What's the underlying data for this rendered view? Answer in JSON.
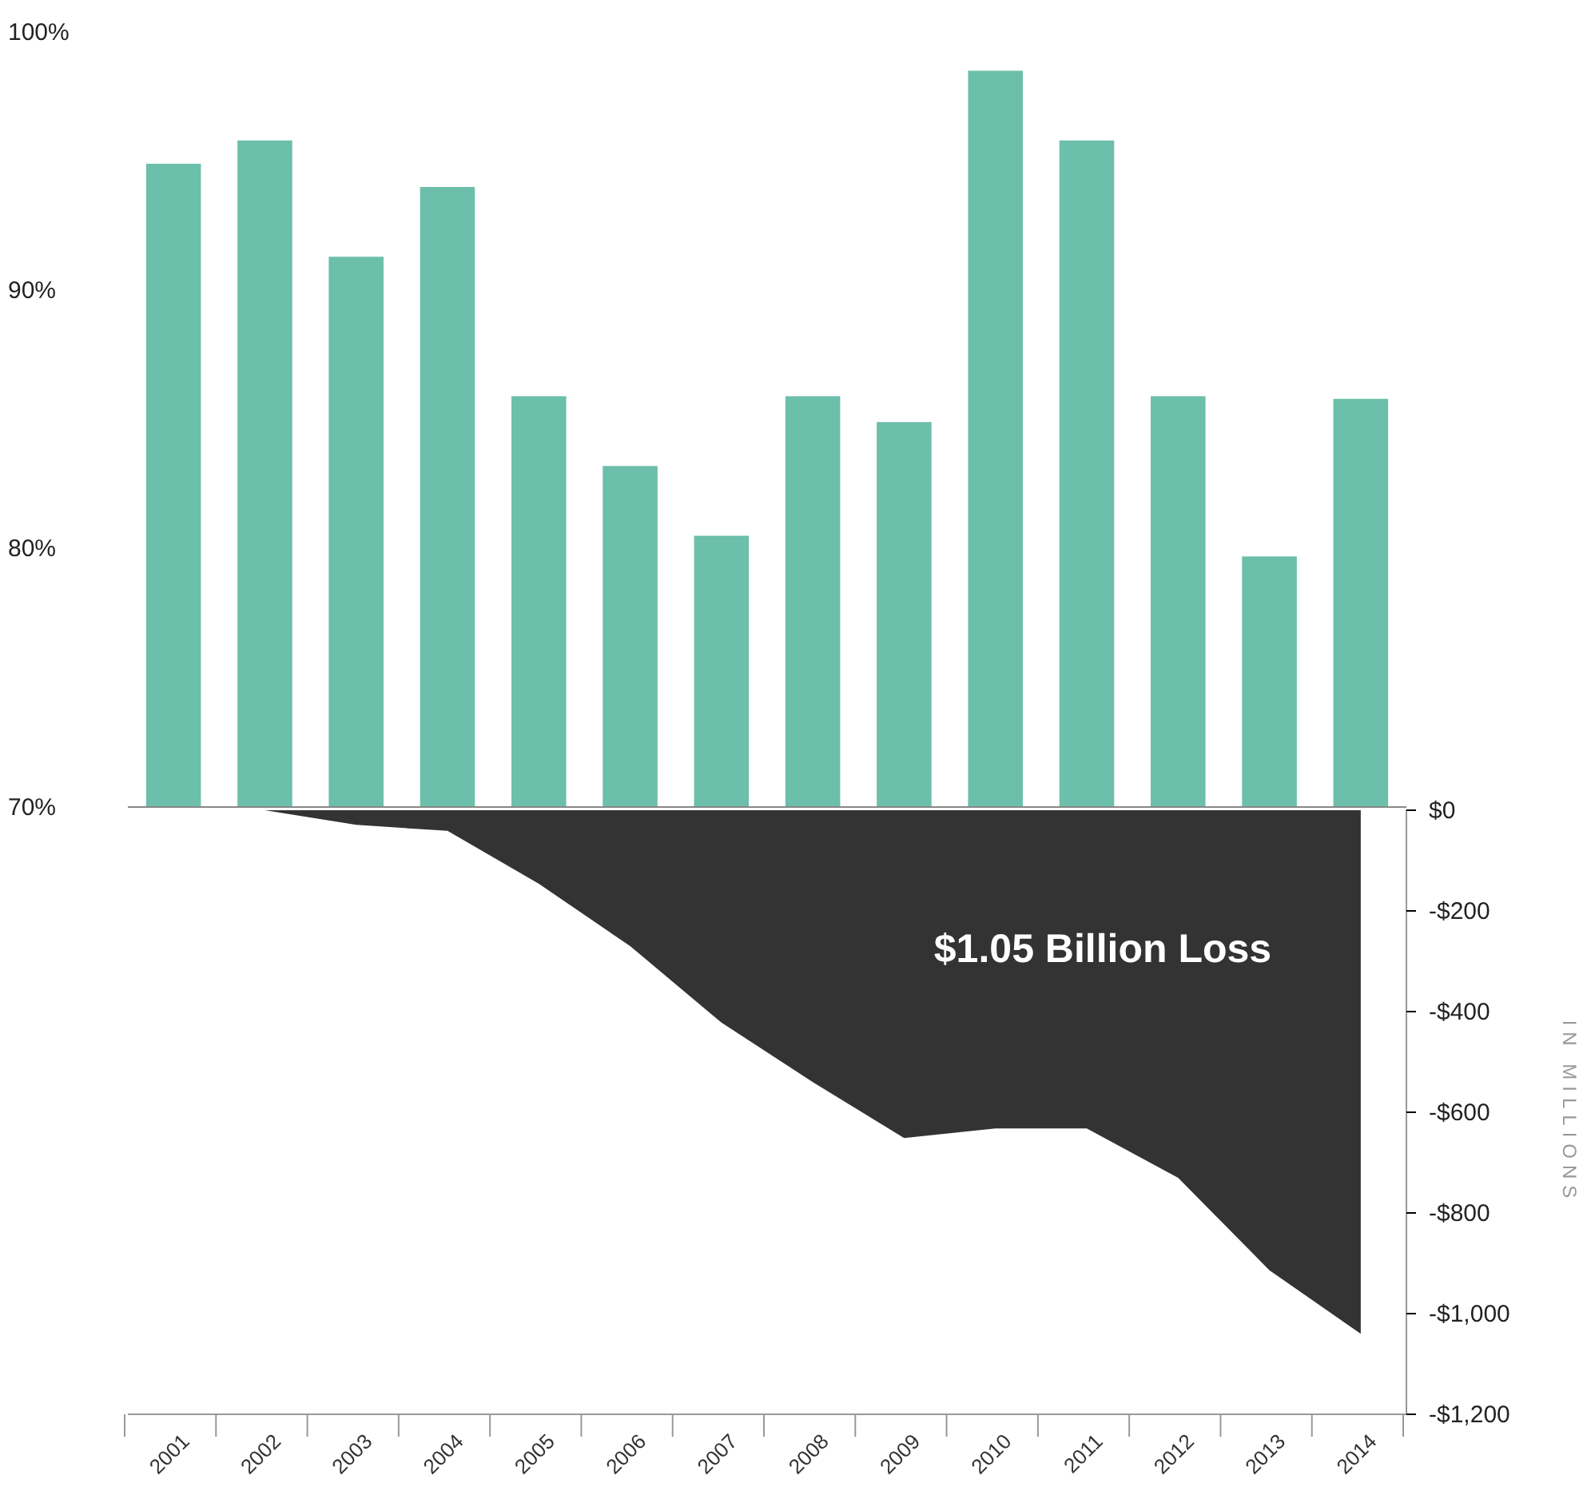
{
  "chart_data": [
    {
      "type": "bar",
      "categories": [
        "2001",
        "2002",
        "2003",
        "2004",
        "2005",
        "2006",
        "2007",
        "2008",
        "2009",
        "2010",
        "2011",
        "2012",
        "2013",
        "2014"
      ],
      "values": [
        94.9,
        95.8,
        91.3,
        94.0,
        85.9,
        83.2,
        80.5,
        85.9,
        84.9,
        98.5,
        95.8,
        85.9,
        79.7,
        85.8
      ],
      "color": "#6cbfaa",
      "ylim": [
        70,
        100
      ],
      "yticks": [
        {
          "value": 70,
          "label": "70%"
        },
        {
          "value": 80,
          "label": "80%"
        },
        {
          "value": 90,
          "label": "90%"
        },
        {
          "value": 100,
          "label": "100%"
        }
      ],
      "tick_labels": "y"
    },
    {
      "type": "area",
      "categories": [
        "2001",
        "2002",
        "2003",
        "2004",
        "2005",
        "2006",
        "2007",
        "2008",
        "2009",
        "2010",
        "2011",
        "2012",
        "2013",
        "2014"
      ],
      "values": [
        null,
        0,
        -29,
        -41,
        -146,
        -270,
        -422,
        -540,
        -651,
        -632,
        -632,
        -730,
        -914,
        -1040
      ],
      "color": "#333333",
      "ylim": [
        -1200,
        0
      ],
      "ylabel": "IN MILLIONS",
      "yticks": [
        {
          "value": 0,
          "label": "$0"
        },
        {
          "value": -200,
          "label": "-$200"
        },
        {
          "value": -400,
          "label": "-$400"
        },
        {
          "value": -600,
          "label": "-$600"
        },
        {
          "value": -800,
          "label": "-$800"
        },
        {
          "value": -1000,
          "label": "-$1,000"
        },
        {
          "value": -1200,
          "label": "-$1,200"
        }
      ],
      "annotations": [
        "$1.05 Billion Loss"
      ]
    }
  ]
}
